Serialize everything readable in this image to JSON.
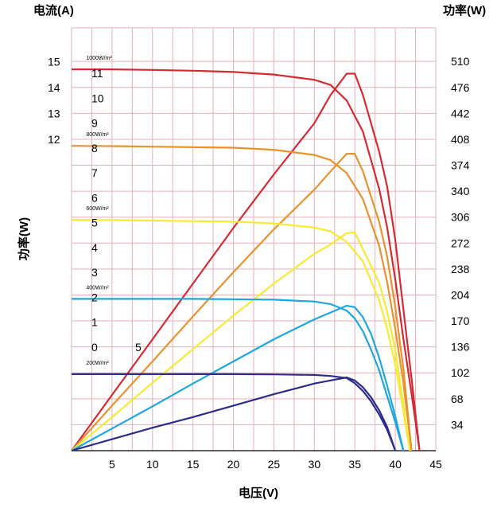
{
  "chart_data": {
    "type": "line",
    "title": "",
    "xlabel": "电压(V)",
    "ylabel_left_top": "电流(A)",
    "ylabel_left_side": "功率(W)",
    "ylabel_right": "功率(W)",
    "xlim": [
      0,
      45
    ],
    "current_lim": [
      0,
      16.3
    ],
    "power_lim": [
      0,
      554
    ],
    "x_ticks": [
      "5",
      "10",
      "15",
      "20",
      "25",
      "30",
      "35",
      "40",
      "45"
    ],
    "x_tick_values": [
      5,
      10,
      15,
      20,
      25,
      30,
      35,
      40,
      45
    ],
    "left_ticks_top": [
      "15",
      "14",
      "13",
      "12"
    ],
    "left_tick_top_values": [
      15,
      14,
      13,
      12
    ],
    "left_ticks_inner": [
      "11",
      "10",
      "9",
      "8",
      "7",
      "6",
      "5",
      "4",
      "3",
      "2",
      "1",
      "0"
    ],
    "left_tick_inner_values": [
      11,
      10,
      9,
      8,
      7,
      6,
      5,
      4,
      3,
      2,
      1,
      0
    ],
    "extra_label": "5",
    "right_ticks": [
      "510",
      "476",
      "442",
      "408",
      "374",
      "340",
      "306",
      "272",
      "238",
      "204",
      "170",
      "136",
      "102",
      "68",
      "34"
    ],
    "right_tick_values": [
      510,
      476,
      442,
      408,
      374,
      340,
      306,
      272,
      238,
      204,
      170,
      136,
      102,
      68,
      34
    ],
    "grid": true,
    "series": [
      {
        "name": "1000W/m²",
        "color": "#d42a34",
        "current_x": [
          0,
          5,
          10,
          15,
          20,
          25,
          30,
          32,
          34,
          36,
          38,
          39,
          40,
          41,
          42,
          43
        ],
        "current_y": [
          14.7,
          14.7,
          14.68,
          14.65,
          14.6,
          14.5,
          14.3,
          14.1,
          13.5,
          12.3,
          10.1,
          8.6,
          6.6,
          4.3,
          2.2,
          0
        ],
        "power_x": [
          0,
          5,
          10,
          15,
          20,
          25,
          30,
          32,
          34,
          35,
          36,
          38,
          39,
          40,
          41,
          42,
          43
        ],
        "power_y": [
          0,
          73,
          146,
          219,
          292,
          362,
          429,
          466,
          494,
          494,
          466,
          392,
          346,
          276,
          185,
          95,
          0
        ]
      },
      {
        "name": "800W/m²",
        "color": "#e8922f",
        "current_x": [
          0,
          5,
          10,
          15,
          20,
          25,
          30,
          32,
          34,
          36,
          38,
          39,
          40,
          41,
          42
        ],
        "current_y": [
          11.75,
          11.74,
          11.72,
          11.7,
          11.68,
          11.6,
          11.4,
          11.2,
          10.7,
          9.7,
          7.9,
          6.5,
          4.7,
          2.6,
          0
        ],
        "power_x": [
          0,
          5,
          10,
          15,
          20,
          25,
          30,
          32,
          34,
          35,
          36,
          38,
          39,
          40,
          41,
          42
        ],
        "power_y": [
          0,
          59,
          117,
          176,
          234,
          290,
          342,
          366,
          389,
          389,
          366,
          300,
          254,
          188,
          107,
          0
        ]
      },
      {
        "name": "600W/m²",
        "color": "#f7e934",
        "current_x": [
          0,
          5,
          10,
          15,
          20,
          25,
          30,
          32,
          34,
          36,
          38,
          39,
          40,
          41,
          41.8
        ],
        "current_y": [
          8.9,
          8.89,
          8.87,
          8.85,
          8.83,
          8.76,
          8.6,
          8.45,
          8.05,
          7.3,
          5.8,
          4.7,
          3.3,
          1.5,
          0
        ],
        "power_x": [
          0,
          5,
          10,
          15,
          20,
          25,
          30,
          32,
          34,
          35,
          36,
          38,
          39,
          40,
          41,
          41.8
        ],
        "power_y": [
          0,
          44,
          89,
          133,
          177,
          219,
          258,
          270,
          285,
          286,
          264,
          220,
          182,
          132,
          60,
          0
        ]
      },
      {
        "name": "400W/m²",
        "color": "#1fa6de",
        "current_x": [
          0,
          5,
          10,
          15,
          20,
          25,
          30,
          32,
          34,
          35,
          36,
          37,
          38,
          39,
          40,
          41
        ],
        "current_y": [
          5.85,
          5.85,
          5.85,
          5.85,
          5.84,
          5.82,
          5.75,
          5.65,
          5.4,
          5.1,
          4.6,
          3.9,
          3.1,
          2.1,
          1.1,
          0
        ],
        "power_x": [
          0,
          5,
          10,
          15,
          20,
          25,
          30,
          32,
          34,
          35,
          36,
          37,
          38,
          39,
          40,
          41
        ],
        "power_y": [
          0,
          29,
          58,
          88,
          117,
          146,
          172,
          181,
          190,
          188,
          175,
          153,
          122,
          85,
          45,
          0
        ]
      },
      {
        "name": "200W/m²",
        "color": "#2c2c8a",
        "current_x": [
          0,
          5,
          10,
          15,
          20,
          25,
          30,
          32,
          34,
          35,
          36,
          37,
          38,
          39,
          40
        ],
        "current_y": [
          2.95,
          2.95,
          2.95,
          2.95,
          2.95,
          2.94,
          2.92,
          2.88,
          2.8,
          2.6,
          2.3,
          1.9,
          1.4,
          0.8,
          0
        ],
        "power_x": [
          0,
          5,
          10,
          15,
          20,
          25,
          30,
          32,
          34,
          35,
          36,
          37,
          38,
          39,
          40
        ],
        "power_y": [
          0,
          15,
          30,
          44,
          59,
          74,
          88,
          92,
          96,
          92,
          83,
          70,
          53,
          31,
          0
        ]
      }
    ]
  }
}
